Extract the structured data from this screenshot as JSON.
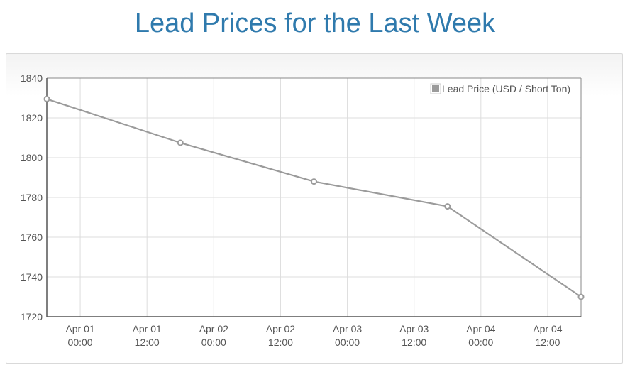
{
  "title": "Lead Prices for the Last Week",
  "colors": {
    "title": "#2f7aad",
    "series": "#9b9b9b",
    "grid": "#dddddd",
    "axis": "#555555"
  },
  "chart_data": {
    "type": "line",
    "title": "Lead Prices for the Last Week",
    "xlabel": "",
    "ylabel": "",
    "grid": true,
    "legend_position": "top-right",
    "x_ticks": [
      {
        "t": "2024-03-31T18:00",
        "line1": "Apr 01",
        "line2": "00:00"
      },
      {
        "t": "2024-04-01T06:00",
        "line1": "Apr 01",
        "line2": "12:00"
      },
      {
        "t": "2024-04-01T18:00",
        "line1": "Apr 02",
        "line2": "00:00"
      },
      {
        "t": "2024-04-02T06:00",
        "line1": "Apr 02",
        "line2": "12:00"
      },
      {
        "t": "2024-04-02T18:00",
        "line1": "Apr 03",
        "line2": "00:00"
      },
      {
        "t": "2024-04-03T06:00",
        "line1": "Apr 03",
        "line2": "12:00"
      },
      {
        "t": "2024-04-03T18:00",
        "line1": "Apr 04",
        "line2": "00:00"
      },
      {
        "t": "2024-04-04T06:00",
        "line1": "Apr 04",
        "line2": "12:00"
      }
    ],
    "xlim": [
      "2024-03-31T12:00",
      "2024-04-04T12:00"
    ],
    "ylim": [
      1720,
      1840
    ],
    "y_ticks": [
      1720,
      1740,
      1760,
      1780,
      1800,
      1820,
      1840
    ],
    "series": [
      {
        "name": "Lead Price (USD / Short Ton)",
        "color": "#9b9b9b",
        "points": [
          {
            "x": "2024-03-31T12:00",
            "y": 1829.5
          },
          {
            "x": "2024-04-01T12:00",
            "y": 1807.5
          },
          {
            "x": "2024-04-02T12:00",
            "y": 1788
          },
          {
            "x": "2024-04-03T12:00",
            "y": 1775.5
          },
          {
            "x": "2024-04-04T12:00",
            "y": 1730
          }
        ]
      }
    ]
  }
}
